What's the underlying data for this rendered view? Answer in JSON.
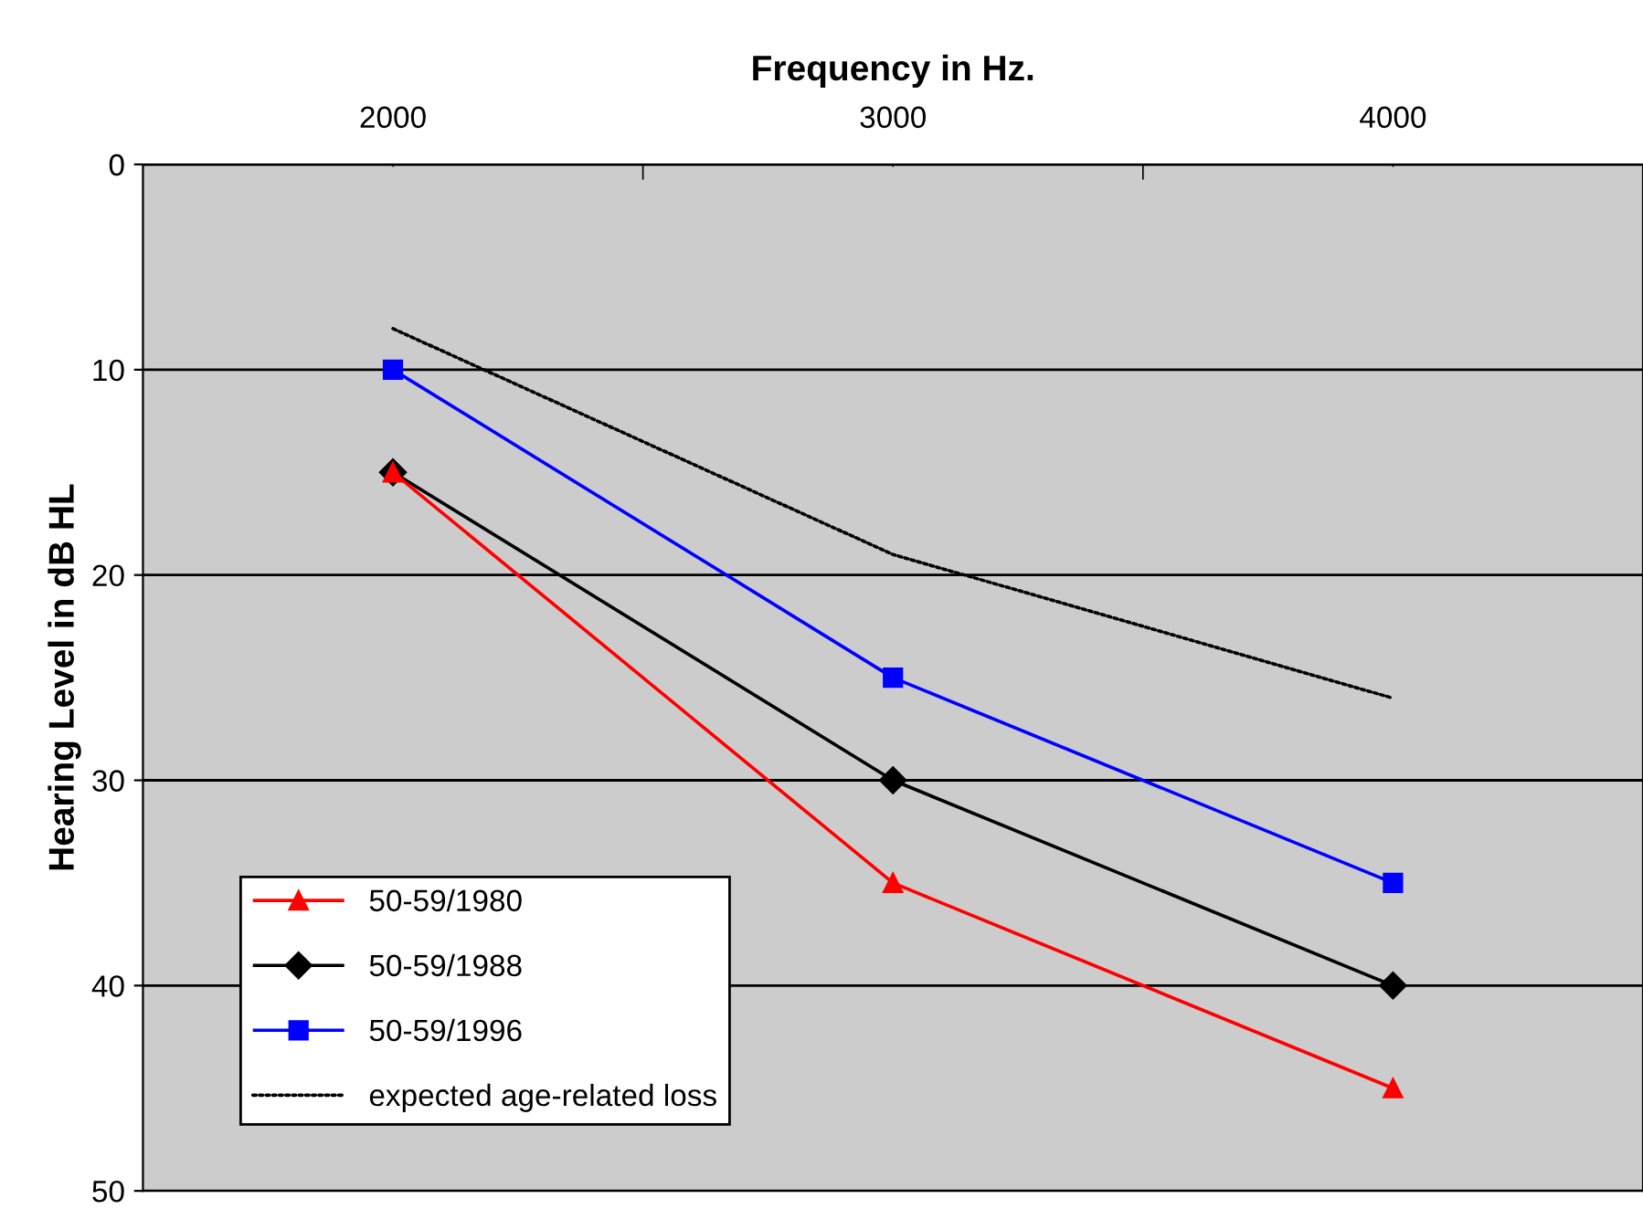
{
  "chart_data": {
    "type": "line",
    "xlabel": "Frequency in Hz.",
    "ylabel": "Hearing Level in dB HL",
    "x": [
      2000,
      3000,
      4000
    ],
    "series": [
      {
        "name": "50-59/1980",
        "color": "#ff0000",
        "values": [
          15,
          35,
          45
        ],
        "marker": "triangle",
        "line_style": "solid"
      },
      {
        "name": "50-59/1988",
        "color": "#000000",
        "values": [
          15,
          30,
          40
        ],
        "marker": "diamond",
        "line_style": "solid"
      },
      {
        "name": "50-59/1996",
        "color": "#0000ff",
        "values": [
          10,
          25,
          35
        ],
        "marker": "square",
        "line_style": "solid"
      },
      {
        "name": "expected age-related loss",
        "color": "#000000",
        "values": [
          8,
          19,
          26
        ],
        "marker": "none",
        "line_style": "dotted"
      }
    ],
    "xlim": [
      1500,
      4500
    ],
    "xticks": [
      2000,
      {
        "value": 2500,
        "label": null
      },
      3000,
      {
        "value": 3500,
        "label": null
      },
      4000
    ],
    "ylim": [
      50,
      0
    ],
    "yticks": [
      0,
      10,
      20,
      30,
      40,
      50
    ],
    "grid": "y",
    "legend": "bottom left"
  }
}
